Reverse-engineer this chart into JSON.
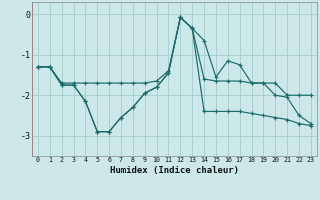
{
  "xlabel": "Humidex (Indice chaleur)",
  "xlim": [
    -0.5,
    23.5
  ],
  "ylim": [
    -3.5,
    0.3
  ],
  "yticks": [
    0,
    -1,
    -2,
    -3
  ],
  "xticks": [
    0,
    1,
    2,
    3,
    4,
    5,
    6,
    7,
    8,
    9,
    10,
    11,
    12,
    13,
    14,
    15,
    16,
    17,
    18,
    19,
    20,
    21,
    22,
    23
  ],
  "bg_color": "#cce8e8",
  "grid_color": "#aad0d0",
  "line_color": "#1a6b6b",
  "lines": [
    {
      "x": [
        0,
        1,
        2,
        3,
        4,
        5,
        6,
        7,
        8,
        9,
        10,
        11,
        12,
        13,
        14,
        15,
        16,
        17,
        18,
        19,
        20,
        21,
        22,
        23
      ],
      "y": [
        -1.3,
        -1.3,
        -1.7,
        -1.7,
        -1.7,
        -1.7,
        -1.7,
        -1.7,
        -1.7,
        -1.7,
        -1.65,
        -1.4,
        -0.08,
        -0.35,
        -0.65,
        -1.55,
        -1.15,
        -1.25,
        -1.7,
        -1.7,
        -1.7,
        -2.0,
        -2.0,
        -2.0
      ]
    },
    {
      "x": [
        0,
        1,
        2,
        3,
        4,
        5,
        6,
        7,
        8,
        9,
        10,
        11,
        12,
        13,
        14,
        15,
        16,
        17,
        18,
        19,
        20,
        21,
        22,
        23
      ],
      "y": [
        -1.3,
        -1.3,
        -1.75,
        -1.75,
        -2.15,
        -2.9,
        -2.9,
        -2.55,
        -2.3,
        -1.95,
        -1.8,
        -1.45,
        -0.08,
        -0.35,
        -1.6,
        -1.65,
        -1.65,
        -1.65,
        -1.7,
        -1.7,
        -2.0,
        -2.05,
        -2.5,
        -2.7
      ]
    },
    {
      "x": [
        0,
        1,
        2,
        3,
        4,
        5,
        6,
        7,
        8,
        9,
        10,
        11,
        12,
        13,
        14,
        15,
        16,
        17,
        18,
        19,
        20,
        21,
        22,
        23
      ],
      "y": [
        -1.3,
        -1.3,
        -1.75,
        -1.75,
        -2.15,
        -2.9,
        -2.9,
        -2.55,
        -2.3,
        -1.95,
        -1.8,
        -1.45,
        -0.08,
        -0.35,
        -2.4,
        -2.4,
        -2.4,
        -2.4,
        -2.45,
        -2.5,
        -2.55,
        -2.6,
        -2.7,
        -2.75
      ]
    }
  ]
}
